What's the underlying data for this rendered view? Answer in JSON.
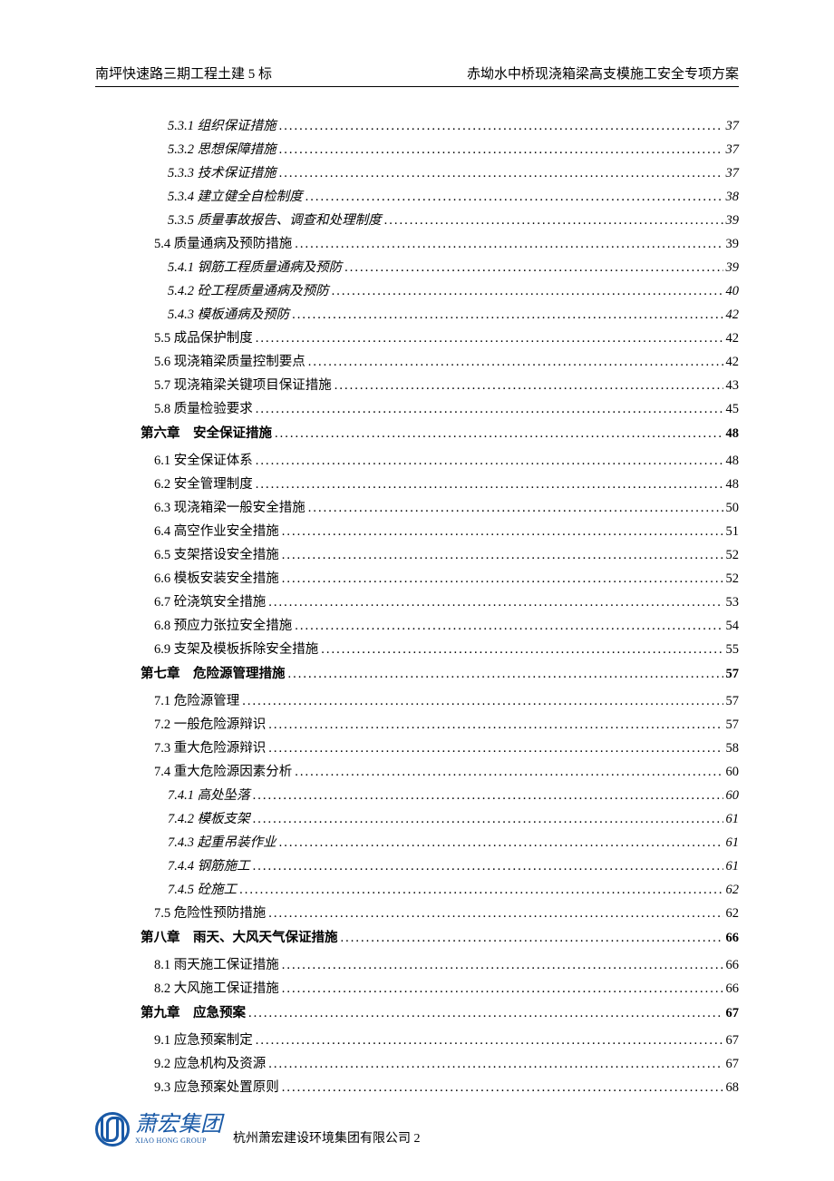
{
  "header": {
    "left": "南坪快速路三期工程土建 5 标",
    "right": "赤坳水中桥现浇箱梁高支模施工安全专项方案"
  },
  "toc": [
    {
      "level": 3,
      "label": "5.3.1 组织保证措施",
      "page": "37"
    },
    {
      "level": 3,
      "label": "5.3.2 思想保障措施",
      "page": "37"
    },
    {
      "level": 3,
      "label": "5.3.3 技术保证措施",
      "page": "37"
    },
    {
      "level": 3,
      "label": "5.3.4 建立健全自检制度",
      "page": "38"
    },
    {
      "level": 3,
      "label": "5.3.5 质量事故报告、调查和处理制度",
      "page": "39"
    },
    {
      "level": 2,
      "label": "5.4 质量通病及预防措施",
      "page": "39"
    },
    {
      "level": 3,
      "label": "5.4.1 钢筋工程质量通病及预防",
      "page": "39"
    },
    {
      "level": 3,
      "label": "5.4.2 砼工程质量通病及预防",
      "page": "40"
    },
    {
      "level": 3,
      "label": "5.4.3 模板通病及预防",
      "page": "42"
    },
    {
      "level": 2,
      "label": "5.5 成品保护制度",
      "page": "42"
    },
    {
      "level": 2,
      "label": "5.6 现浇箱梁质量控制要点",
      "page": "42"
    },
    {
      "level": 2,
      "label": "5.7 现浇箱梁关键项目保证措施",
      "page": "43"
    },
    {
      "level": 2,
      "label": "5.8 质量检验要求",
      "page": "45"
    },
    {
      "level": 1,
      "label": "第六章　安全保证措施",
      "page": "48"
    },
    {
      "level": 2,
      "label": "6.1 安全保证体系",
      "page": "48"
    },
    {
      "level": 2,
      "label": "6.2 安全管理制度",
      "page": "48"
    },
    {
      "level": 2,
      "label": "6.3 现浇箱梁一般安全措施",
      "page": "50"
    },
    {
      "level": 2,
      "label": "6.4 高空作业安全措施",
      "page": "51"
    },
    {
      "level": 2,
      "label": "6.5 支架搭设安全措施",
      "page": "52"
    },
    {
      "level": 2,
      "label": "6.6 模板安装安全措施",
      "page": "52"
    },
    {
      "level": 2,
      "label": "6.7 砼浇筑安全措施",
      "page": "53"
    },
    {
      "level": 2,
      "label": "6.8 预应力张拉安全措施",
      "page": "54"
    },
    {
      "level": 2,
      "label": "6.9 支架及模板拆除安全措施",
      "page": "55"
    },
    {
      "level": 1,
      "label": "第七章　危险源管理措施",
      "page": "57"
    },
    {
      "level": 2,
      "label": "7.1 危险源管理",
      "page": "57"
    },
    {
      "level": 2,
      "label": "7.2 一般危险源辩识",
      "page": "57"
    },
    {
      "level": 2,
      "label": "7.3 重大危险源辩识",
      "page": "58"
    },
    {
      "level": 2,
      "label": "7.4 重大危险源因素分析",
      "page": "60"
    },
    {
      "level": 3,
      "label": "7.4.1 高处坠落",
      "page": "60"
    },
    {
      "level": 3,
      "label": "7.4.2 模板支架",
      "page": "61"
    },
    {
      "level": 3,
      "label": "7.4.3 起重吊装作业",
      "page": "61"
    },
    {
      "level": 3,
      "label": "7.4.4 钢筋施工",
      "page": "61"
    },
    {
      "level": 3,
      "label": "7.4.5 砼施工",
      "page": "62"
    },
    {
      "level": 2,
      "label": "7.5 危险性预防措施",
      "page": "62"
    },
    {
      "level": 1,
      "label": "第八章　雨天、大风天气保证措施",
      "page": "66"
    },
    {
      "level": 2,
      "label": "8.1 雨天施工保证措施",
      "page": "66"
    },
    {
      "level": 2,
      "label": "8.2 大风施工保证措施",
      "page": "66"
    },
    {
      "level": 1,
      "label": "第九章　应急预案",
      "page": "67"
    },
    {
      "level": 2,
      "label": "9.1 应急预案制定",
      "page": "67"
    },
    {
      "level": 2,
      "label": "9.2 应急机构及资源",
      "page": "67"
    },
    {
      "level": 2,
      "label": "9.3 应急预案处置原则",
      "page": "68"
    }
  ],
  "footer": {
    "logo_cn": "萧宏集团",
    "logo_en": "XIAO HONG GROUP",
    "company": "杭州萧宏建设环境集团有限公司",
    "page_num": "2"
  },
  "colors": {
    "text": "#000000",
    "logo": "#1959a6",
    "background": "#ffffff"
  }
}
